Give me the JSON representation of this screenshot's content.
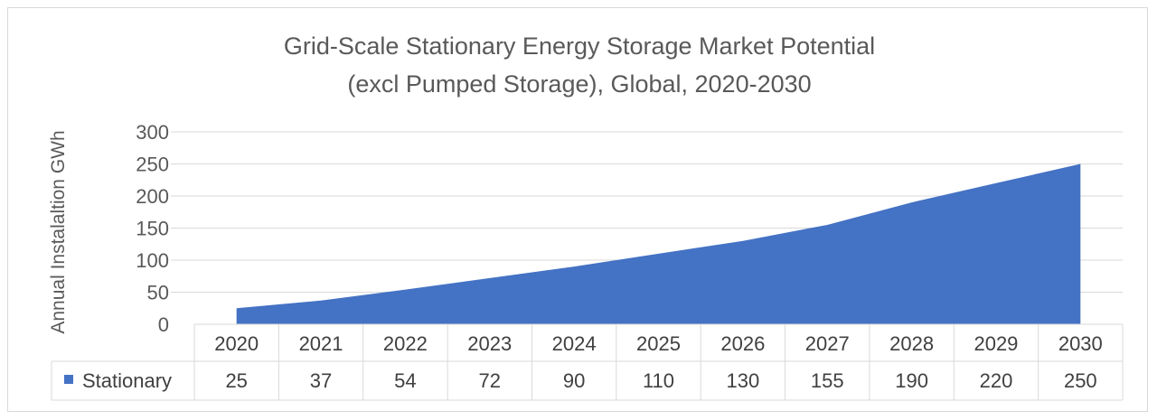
{
  "chart_data": {
    "type": "area",
    "title_line1": "Grid-Scale Stationary Energy Storage Market Potential",
    "title_line2": "(excl Pumped Storage), Global, 2020-2030",
    "ylabel": "Annual Instalaltion GWh",
    "xlabel": "",
    "ylim": [
      0,
      300
    ],
    "yticks": [
      0,
      50,
      100,
      150,
      200,
      250,
      300
    ],
    "categories": [
      "2020",
      "2021",
      "2022",
      "2023",
      "2024",
      "2025",
      "2026",
      "2027",
      "2028",
      "2029",
      "2030"
    ],
    "series": [
      {
        "name": "Stationary",
        "values": [
          25,
          37,
          54,
          72,
          90,
          110,
          130,
          155,
          190,
          220,
          250
        ]
      }
    ],
    "grid": true,
    "legend": "data-table",
    "colors": {
      "series": "#4472C4",
      "grid": "#d9d9d9",
      "text": "#595959"
    }
  }
}
